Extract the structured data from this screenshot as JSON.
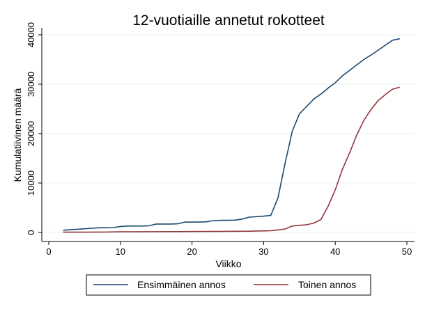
{
  "chart_data": {
    "type": "line",
    "title": "12-vuotiaille annetut rokotteet",
    "xlabel": "Viikko",
    "ylabel": "Kumulatiivinen määrä",
    "xlim": [
      0,
      50
    ],
    "ylim": [
      0,
      40000
    ],
    "x_ticks": [
      0,
      10,
      20,
      30,
      40,
      50
    ],
    "y_ticks": [
      0,
      10000,
      20000,
      30000,
      40000
    ],
    "grid": true,
    "legend_position": "bottom",
    "series": [
      {
        "name": "Ensimmäinen annos",
        "color": "#1a476f",
        "points": [
          [
            2,
            450
          ],
          [
            3,
            550
          ],
          [
            4,
            650
          ],
          [
            5,
            750
          ],
          [
            6,
            850
          ],
          [
            7,
            950
          ],
          [
            8,
            950
          ],
          [
            9,
            980
          ],
          [
            10,
            1200
          ],
          [
            11,
            1300
          ],
          [
            12,
            1300
          ],
          [
            13,
            1300
          ],
          [
            14,
            1350
          ],
          [
            15,
            1700
          ],
          [
            16,
            1700
          ],
          [
            17,
            1700
          ],
          [
            18,
            1750
          ],
          [
            19,
            2100
          ],
          [
            20,
            2100
          ],
          [
            21,
            2100
          ],
          [
            22,
            2150
          ],
          [
            23,
            2400
          ],
          [
            24,
            2450
          ],
          [
            25,
            2450
          ],
          [
            26,
            2500
          ],
          [
            27,
            2700
          ],
          [
            28,
            3100
          ],
          [
            29,
            3200
          ],
          [
            30,
            3300
          ],
          [
            31,
            3450
          ],
          [
            32,
            7000
          ],
          [
            33,
            14000
          ],
          [
            34,
            20500
          ],
          [
            35,
            24000
          ],
          [
            36,
            25500
          ],
          [
            37,
            27000
          ],
          [
            38,
            28000
          ],
          [
            39,
            29200
          ],
          [
            40,
            30300
          ],
          [
            41,
            31700
          ],
          [
            42,
            32800
          ],
          [
            43,
            33900
          ],
          [
            44,
            35000
          ],
          [
            45,
            35900
          ],
          [
            46,
            36900
          ],
          [
            47,
            37900
          ],
          [
            48,
            38900
          ],
          [
            49,
            39200
          ]
        ]
      },
      {
        "name": "Toinen annos",
        "color": "#90353b",
        "points": [
          [
            2,
            50
          ],
          [
            5,
            60
          ],
          [
            8,
            80
          ],
          [
            10,
            120
          ],
          [
            15,
            150
          ],
          [
            20,
            180
          ],
          [
            25,
            220
          ],
          [
            28,
            260
          ],
          [
            31,
            350
          ],
          [
            32,
            500
          ],
          [
            33,
            700
          ],
          [
            34,
            1300
          ],
          [
            35,
            1450
          ],
          [
            36,
            1550
          ],
          [
            37,
            1900
          ],
          [
            38,
            2600
          ],
          [
            39,
            5300
          ],
          [
            40,
            8600
          ],
          [
            41,
            12800
          ],
          [
            42,
            16100
          ],
          [
            43,
            19700
          ],
          [
            44,
            22700
          ],
          [
            45,
            24900
          ],
          [
            46,
            26700
          ],
          [
            47,
            27900
          ],
          [
            48,
            29000
          ],
          [
            49,
            29400
          ]
        ]
      }
    ]
  }
}
